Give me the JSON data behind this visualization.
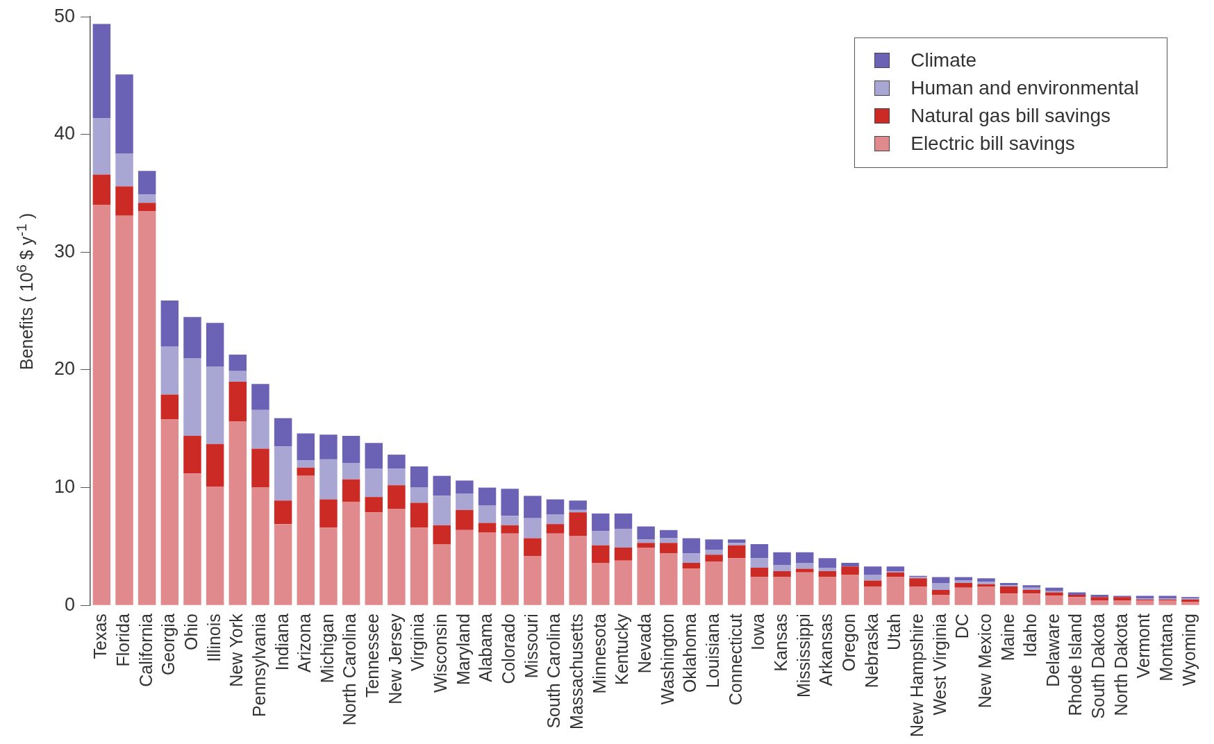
{
  "chart_data": {
    "type": "bar",
    "stacked": true,
    "ylabel": "Benefits ( 10$^{6}$ $ y$^{-1}$ )",
    "legend": "top right",
    "ylim": [
      0,
      50
    ],
    "yticks": [
      0,
      10,
      20,
      30,
      40,
      50
    ],
    "categories": [
      "Texas",
      "Florida",
      "California",
      "Georgia",
      "Ohio",
      "Illinois",
      "New York",
      "Pennsylvania",
      "Indiana",
      "Arizona",
      "Michigan",
      "North Carolina",
      "Tennessee",
      "New Jersey",
      "Virginia",
      "Wisconsin",
      "Maryland",
      "Alabama",
      "Colorado",
      "Missouri",
      "South Carolina",
      "Massachusetts",
      "Minnesota",
      "Kentucky",
      "Nevada",
      "Washington",
      "Oklahoma",
      "Louisiana",
      "Connecticut",
      "Iowa",
      "Kansas",
      "Mississippi",
      "Arkansas",
      "Oregon",
      "Nebraska",
      "Utah",
      "New Hampshire",
      "West Virginia",
      "DC",
      "New Mexico",
      "Maine",
      "Idaho",
      "Delaware",
      "Rhode Island",
      "South Dakota",
      "North Dakota",
      "Vermont",
      "Montana",
      "Wyoming"
    ],
    "series": [
      {
        "name": "Electric bill savings",
        "color": "#e08a8e",
        "values": [
          34.0,
          33.1,
          33.5,
          15.8,
          11.2,
          10.1,
          15.6,
          10.0,
          6.9,
          11.0,
          6.6,
          8.8,
          7.9,
          8.2,
          6.6,
          5.2,
          6.4,
          6.2,
          6.1,
          4.2,
          6.1,
          5.9,
          3.6,
          3.8,
          4.9,
          4.4,
          3.1,
          3.7,
          4.0,
          2.4,
          2.4,
          2.8,
          2.4,
          2.6,
          1.6,
          2.4,
          1.6,
          0.9,
          1.5,
          1.6,
          1.0,
          1.0,
          0.8,
          0.7,
          0.4,
          0.4,
          0.4,
          0.4,
          0.3
        ]
      },
      {
        "name": "Natural gas bill savings",
        "color": "#cc2a25",
        "values": [
          2.6,
          2.5,
          0.7,
          2.1,
          3.2,
          3.6,
          3.4,
          3.3,
          2.0,
          0.7,
          2.4,
          1.9,
          1.3,
          2.0,
          2.1,
          1.6,
          1.7,
          0.8,
          0.7,
          1.5,
          0.8,
          2.0,
          1.5,
          1.1,
          0.4,
          0.9,
          0.5,
          0.6,
          1.1,
          0.8,
          0.5,
          0.3,
          0.5,
          0.7,
          0.5,
          0.4,
          0.7,
          0.4,
          0.4,
          0.2,
          0.6,
          0.3,
          0.3,
          0.2,
          0.3,
          0.3,
          0.1,
          0.1,
          0.2
        ]
      },
      {
        "name": "Human and environmental",
        "color": "#a9a6d4",
        "values": [
          4.8,
          2.8,
          0.7,
          4.1,
          6.6,
          6.6,
          0.9,
          3.3,
          4.6,
          0.6,
          3.4,
          1.4,
          2.4,
          1.4,
          1.3,
          2.5,
          1.4,
          1.5,
          0.8,
          1.7,
          0.8,
          0.2,
          1.2,
          1.6,
          0.3,
          0.4,
          0.8,
          0.4,
          0.2,
          0.8,
          0.5,
          0.5,
          0.3,
          null,
          0.5,
          0.1,
          0.1,
          0.6,
          0.2,
          0.2,
          0.1,
          0.2,
          0.1,
          null,
          null,
          null,
          0.1,
          0.1,
          0.1
        ]
      },
      {
        "name": "Climate",
        "color": "#6b62b5",
        "values": [
          8.0,
          6.7,
          2.0,
          3.9,
          3.5,
          3.7,
          1.4,
          2.2,
          2.4,
          2.3,
          2.1,
          2.3,
          2.2,
          1.2,
          1.8,
          1.7,
          1.1,
          1.5,
          2.3,
          1.9,
          1.3,
          0.8,
          1.5,
          1.3,
          1.1,
          0.7,
          1.3,
          0.9,
          0.3,
          1.2,
          1.1,
          0.9,
          0.8,
          0.3,
          0.7,
          0.4,
          0.1,
          0.5,
          0.3,
          0.3,
          0.2,
          0.2,
          0.3,
          0.2,
          0.2,
          0.1,
          0.2,
          0.2,
          0.1
        ]
      }
    ]
  }
}
